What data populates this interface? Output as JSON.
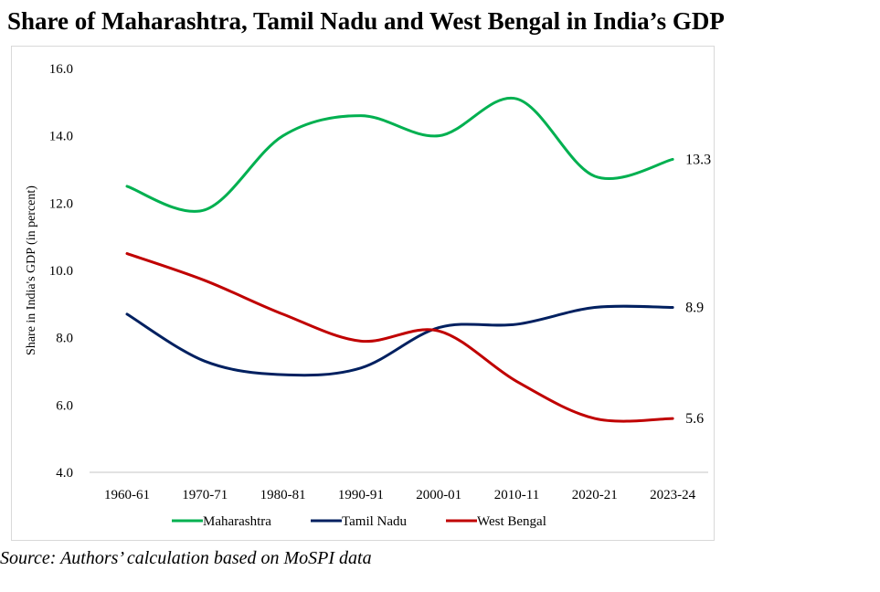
{
  "title": "Share of Maharashtra, Tamil Nadu and West Bengal in India’s GDP",
  "source": "Source: Authors’ calculation based on MoSPI data",
  "chart_data": {
    "type": "line",
    "title": "Share of Maharashtra, Tamil Nadu and West Bengal in India’s GDP",
    "xlabel": "",
    "ylabel": "Share in India's GDP (in percent)",
    "categories": [
      "1960-61",
      "1970-71",
      "1980-81",
      "1990-91",
      "2000-01",
      "2010-11",
      "2020-21",
      "2023-24"
    ],
    "ylim": [
      4.0,
      16.0
    ],
    "yticks": [
      "4.0",
      "6.0",
      "8.0",
      "10.0",
      "12.0",
      "14.0",
      "16.0"
    ],
    "grid": false,
    "legend": "bottom",
    "smooth": true,
    "series": [
      {
        "name": "Maharashtra",
        "color": "#00b050",
        "values": [
          12.5,
          11.8,
          14.0,
          14.6,
          14.0,
          15.1,
          12.8,
          13.3
        ],
        "end_label": "13.3"
      },
      {
        "name": "Tamil Nadu",
        "color": "#002060",
        "values": [
          8.7,
          7.3,
          6.9,
          7.1,
          8.3,
          8.4,
          8.9,
          8.9
        ],
        "end_label": "8.9"
      },
      {
        "name": "West Bengal",
        "color": "#c00000",
        "values": [
          10.5,
          9.7,
          8.7,
          7.9,
          8.2,
          6.7,
          5.6,
          5.6
        ],
        "end_label": "5.6"
      }
    ]
  }
}
